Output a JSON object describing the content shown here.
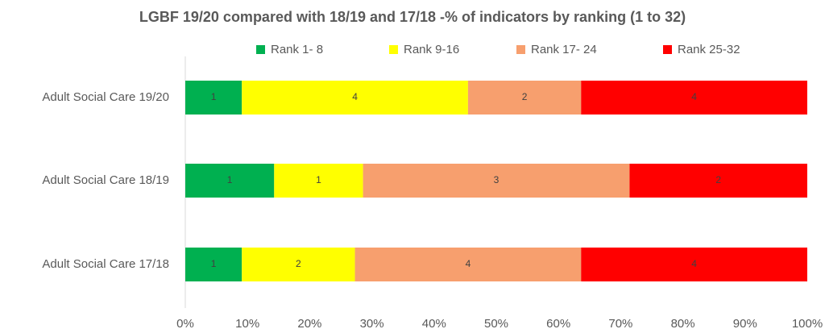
{
  "chart_data": {
    "type": "bar",
    "orientation": "horizontal",
    "stack": "percent",
    "title": "LGBF 19/20 compared with 18/19 and 17/18 -% of indicators by ranking (1 to 32)",
    "categories": [
      "Adult Social Care 19/20",
      "Adult Social Care 18/19",
      "Adult Social Care 17/18"
    ],
    "series": [
      {
        "name": "Rank 1- 8",
        "color": "#00b050",
        "values": [
          1,
          1,
          1
        ]
      },
      {
        "name": "Rank 9-16",
        "color": "#ffff00",
        "values": [
          4,
          1,
          2
        ]
      },
      {
        "name": "Rank 17- 24",
        "color": "#f79f6e",
        "values": [
          2,
          3,
          4
        ]
      },
      {
        "name": "Rank 25-32",
        "color": "#ff0000",
        "values": [
          4,
          2,
          4
        ]
      }
    ],
    "xlim": [
      0,
      100
    ],
    "xticks": [
      {
        "value": 0,
        "label": "0%"
      },
      {
        "value": 10,
        "label": "10%"
      },
      {
        "value": 20,
        "label": "20%"
      },
      {
        "value": 30,
        "label": "30%"
      },
      {
        "value": 40,
        "label": "40%"
      },
      {
        "value": 50,
        "label": "50%"
      },
      {
        "value": 60,
        "label": "60%"
      },
      {
        "value": 70,
        "label": "70%"
      },
      {
        "value": 80,
        "label": "80%"
      },
      {
        "value": 90,
        "label": "90%"
      },
      {
        "value": 100,
        "label": "100%"
      }
    ],
    "legend": "top",
    "grid": false
  }
}
